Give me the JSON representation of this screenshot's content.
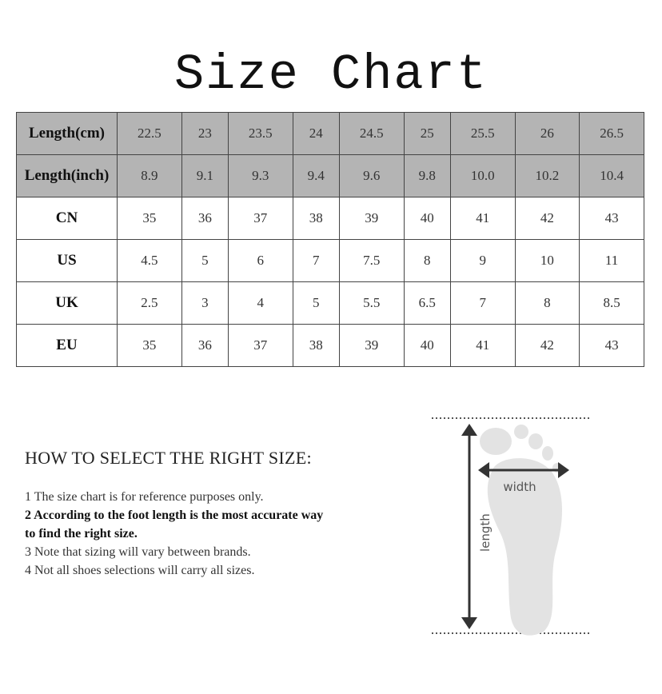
{
  "title": "Size Chart",
  "table": {
    "rows": [
      {
        "label": "Length(cm)",
        "values": [
          "22.5",
          "23",
          "23.5",
          "24",
          "24.5",
          "25",
          "25.5",
          "26",
          "26.5"
        ]
      },
      {
        "label": "Length(inch)",
        "values": [
          "8.9",
          "9.1",
          "9.3",
          "9.4",
          "9.6",
          "9.8",
          "10.0",
          "10.2",
          "10.4"
        ]
      },
      {
        "label": "CN",
        "values": [
          "35",
          "36",
          "37",
          "38",
          "39",
          "40",
          "41",
          "42",
          "43"
        ]
      },
      {
        "label": "US",
        "values": [
          "4.5",
          "5",
          "6",
          "7",
          "7.5",
          "8",
          "9",
          "10",
          "11"
        ]
      },
      {
        "label": "UK",
        "values": [
          "2.5",
          "3",
          "4",
          "5",
          "5.5",
          "6.5",
          "7",
          "8",
          "8.5"
        ]
      },
      {
        "label": "EU",
        "values": [
          "35",
          "36",
          "37",
          "38",
          "39",
          "40",
          "41",
          "42",
          "43"
        ]
      }
    ],
    "header_fill": "#b4b4b4"
  },
  "howto": {
    "heading": "HOW TO SELECT THE RIGHT SIZE:",
    "tips": [
      {
        "text": "1 The size chart is for reference purposes only.",
        "bold": false
      },
      {
        "text": "2 According to the foot length is the most accurate way to find the right size.",
        "bold": true
      },
      {
        "text": "3 Note that sizing will vary between brands.",
        "bold": false
      },
      {
        "text": "4 Not all shoes selections will carry all sizes.",
        "bold": false
      }
    ]
  },
  "diagram": {
    "width_label": "width",
    "length_label": "length",
    "icon": "foot-icon"
  }
}
